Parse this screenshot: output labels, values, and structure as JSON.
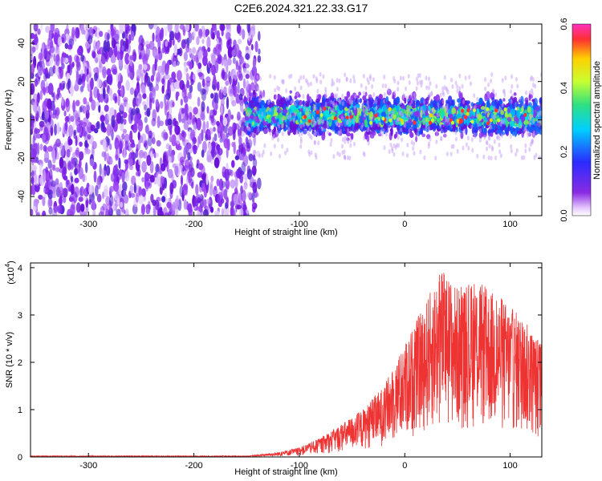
{
  "title": "C2E6.2024.321.22.33.G17",
  "chart_data": [
    {
      "type": "heatmap",
      "xlabel": "Height of straight line (km)",
      "ylabel": "Frequency (Hz)",
      "xlim": [
        -355,
        130
      ],
      "ylim": [
        -50,
        50
      ],
      "xticks": [
        -300,
        -200,
        -100,
        0,
        100
      ],
      "yticks": [
        -40,
        -20,
        0,
        20,
        40
      ],
      "colorbar": {
        "label": "Normalized spectral amplitude",
        "range": [
          0.0,
          0.6
        ],
        "ticks": [
          "0.0",
          "0.2",
          "0.4",
          "0.6"
        ]
      },
      "description_values": {
        "noise_region_x": [
          -355,
          -150
        ],
        "signal_band_x": [
          -150,
          130
        ],
        "signal_band_center_hz": 2,
        "signal_band_halfwidth_hz": 10
      }
    },
    {
      "type": "line",
      "xlabel": "Height of straight line (km)",
      "ylabel": "SNR (10 * v/v)",
      "yscale_label": "(x10",
      "yscale_exp": "4",
      "xlim": [
        -355,
        130
      ],
      "ylim": [
        0,
        4.1
      ],
      "xticks": [
        -300,
        -200,
        -100,
        0,
        100
      ],
      "yticks": [
        0,
        1,
        2,
        3,
        4
      ],
      "series": [
        {
          "color": "#ee3333",
          "envelope": [
            {
              "x": -355,
              "y": 0.02
            },
            {
              "x": -150,
              "y": 0.02
            },
            {
              "x": -120,
              "y": 0.1
            },
            {
              "x": -100,
              "y": 0.2
            },
            {
              "x": -80,
              "y": 0.4
            },
            {
              "x": -60,
              "y": 0.7
            },
            {
              "x": -40,
              "y": 1.0
            },
            {
              "x": -20,
              "y": 1.5
            },
            {
              "x": 0,
              "y": 2.4
            },
            {
              "x": 20,
              "y": 3.3
            },
            {
              "x": 35,
              "y": 4.0
            },
            {
              "x": 50,
              "y": 3.6
            },
            {
              "x": 70,
              "y": 3.7
            },
            {
              "x": 90,
              "y": 3.4
            },
            {
              "x": 110,
              "y": 3.0
            },
            {
              "x": 130,
              "y": 2.4
            }
          ]
        }
      ]
    }
  ]
}
